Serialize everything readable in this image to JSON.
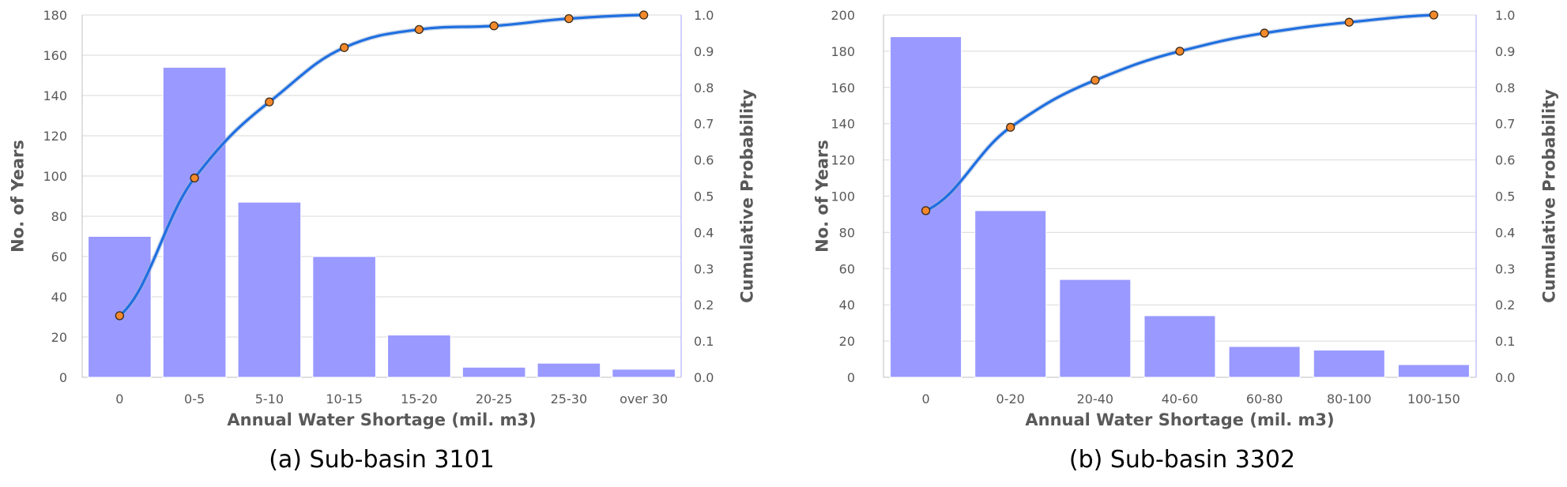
{
  "colors": {
    "bar": "#9999ff",
    "line": "#1f6fe0",
    "marker_fill": "#f4892c",
    "marker_stroke": "#3a2a1a"
  },
  "chart_data": [
    {
      "type": "bar",
      "caption": "(a) Sub-basin 3101",
      "xlabel": "Annual Water Shortage (mil. m3)",
      "ylabel": "No. of Years",
      "y2label": "Cumulative Probability",
      "ylim": [
        0,
        180
      ],
      "y2lim": [
        0,
        1.0
      ],
      "yticks": [
        "0",
        "20",
        "40",
        "60",
        "80",
        "100",
        "120",
        "140",
        "160",
        "180"
      ],
      "y2ticks": [
        "0.0",
        "0.1",
        "0.2",
        "0.3",
        "0.4",
        "0.5",
        "0.6",
        "0.7",
        "0.8",
        "0.9",
        "1.0"
      ],
      "categories": [
        "0",
        "0-5",
        "5-10",
        "10-15",
        "15-20",
        "20-25",
        "25-30",
        "over 30"
      ],
      "values": [
        70,
        154,
        87,
        60,
        21,
        5,
        7,
        4
      ],
      "cumulative": [
        0.17,
        0.55,
        0.76,
        0.91,
        0.96,
        0.97,
        0.99,
        1.0
      ],
      "grid": true
    },
    {
      "type": "bar",
      "caption": "(b) Sub-basin 3302",
      "xlabel": "Annual Water Shortage (mil. m3)",
      "ylabel": "No. of Years",
      "y2label": "Cumulative Probability",
      "ylim": [
        0,
        200
      ],
      "y2lim": [
        0,
        1.0
      ],
      "yticks": [
        "0",
        "20",
        "40",
        "60",
        "80",
        "100",
        "120",
        "140",
        "160",
        "180",
        "200"
      ],
      "y2ticks": [
        "0.0",
        "0.1",
        "0.2",
        "0.3",
        "0.4",
        "0.5",
        "0.6",
        "0.7",
        "0.8",
        "0.9",
        "1.0"
      ],
      "categories": [
        "0",
        "0-20",
        "20-40",
        "40-60",
        "60-80",
        "80-100",
        "100-150"
      ],
      "values": [
        188,
        92,
        54,
        34,
        17,
        15,
        7
      ],
      "cumulative": [
        0.46,
        0.69,
        0.82,
        0.9,
        0.95,
        0.98,
        1.0
      ],
      "grid": true
    }
  ]
}
